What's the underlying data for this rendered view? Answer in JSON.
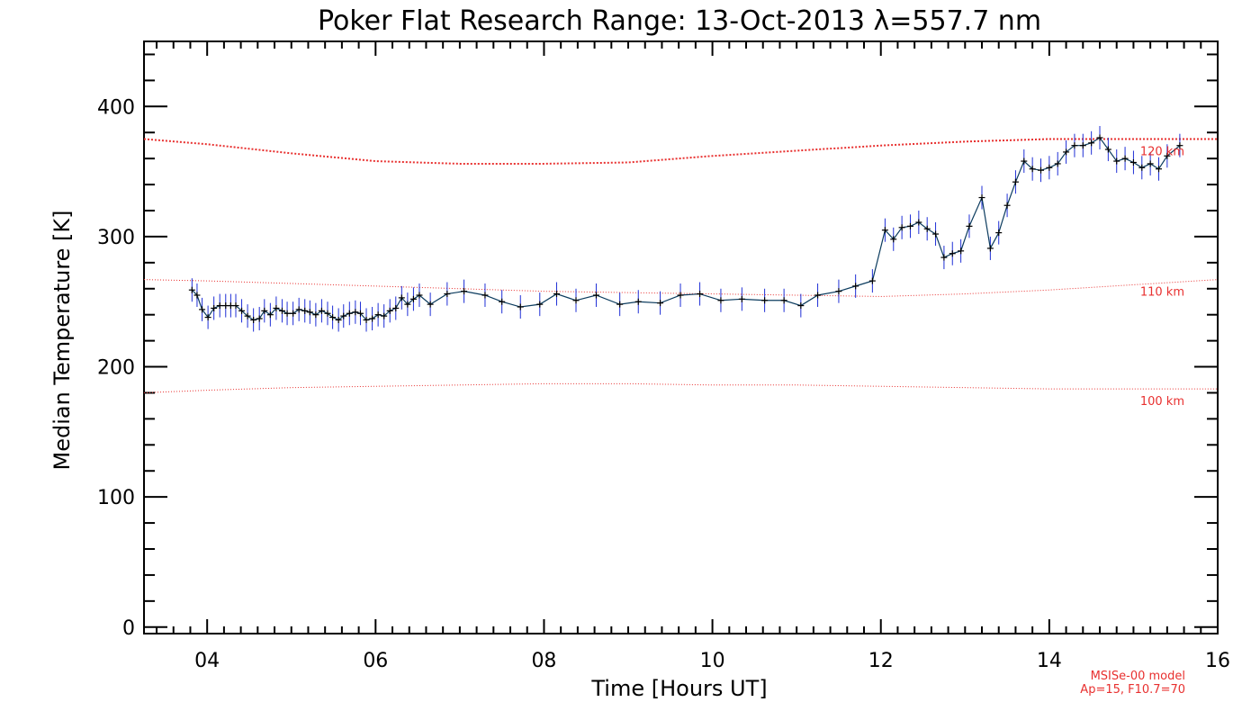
{
  "chart_data": {
    "type": "line",
    "title": "Poker Flat Research Range: 13-Oct-2013 λ=557.7 nm",
    "xlabel": "Time [Hours UT]",
    "ylabel": "Median Temperature [K]",
    "xlim": [
      3.25,
      16.0
    ],
    "ylim": [
      -5,
      450
    ],
    "x_ticks": [
      4,
      6,
      8,
      10,
      12,
      14,
      16
    ],
    "x_tick_labels": [
      "04",
      "06",
      "08",
      "10",
      "12",
      "14",
      "16"
    ],
    "y_ticks": [
      0,
      100,
      200,
      300,
      400
    ],
    "y_tick_labels": [
      "0",
      "100",
      "200",
      "300",
      "400"
    ],
    "series": [
      {
        "name": "Median temperature",
        "style": "solid line with plus markers and vertical error bars",
        "line_color": "#0b3b5e",
        "marker_color": "#000000",
        "error_color": "#1f2fd6",
        "error": 9,
        "x": [
          3.82,
          3.88,
          3.94,
          4.01,
          4.08,
          4.15,
          4.22,
          4.28,
          4.34,
          4.41,
          4.48,
          4.55,
          4.62,
          4.68,
          4.75,
          4.82,
          4.89,
          4.95,
          5.02,
          5.09,
          5.16,
          5.22,
          5.29,
          5.36,
          5.43,
          5.49,
          5.56,
          5.62,
          5.69,
          5.76,
          5.82,
          5.89,
          5.96,
          6.03,
          6.1,
          6.17,
          6.24,
          6.31,
          6.38,
          6.45,
          6.52,
          6.65,
          6.85,
          7.05,
          7.3,
          7.5,
          7.72,
          7.95,
          8.15,
          8.38,
          8.62,
          8.9,
          9.12,
          9.38,
          9.62,
          9.85,
          10.1,
          10.35,
          10.62,
          10.85,
          11.05,
          11.25,
          11.5,
          11.7,
          11.9,
          12.05,
          12.15,
          12.25,
          12.35,
          12.45,
          12.55,
          12.65,
          12.75,
          12.85,
          12.95,
          13.05,
          13.2,
          13.3,
          13.4,
          13.5,
          13.6,
          13.7,
          13.8,
          13.9,
          14.0,
          14.1,
          14.2,
          14.3,
          14.4,
          14.5,
          14.6,
          14.7,
          14.8,
          14.9,
          15.0,
          15.1,
          15.2,
          15.3,
          15.4,
          15.55
        ],
        "values": [
          259,
          255,
          244,
          238,
          245,
          247,
          247,
          247,
          247,
          243,
          239,
          236,
          237,
          243,
          240,
          245,
          243,
          241,
          241,
          244,
          243,
          242,
          240,
          243,
          241,
          238,
          236,
          239,
          241,
          242,
          241,
          236,
          237,
          240,
          239,
          243,
          245,
          253,
          248,
          252,
          255,
          248,
          256,
          258,
          255,
          250,
          246,
          248,
          256,
          251,
          255,
          248,
          250,
          249,
          255,
          256,
          251,
          252,
          251,
          251,
          247,
          255,
          258,
          262,
          266,
          305,
          298,
          307,
          308,
          311,
          306,
          302,
          284,
          287,
          289,
          308,
          330,
          291,
          303,
          324,
          342,
          358,
          352,
          351,
          353,
          356,
          365,
          370,
          370,
          372,
          376,
          367,
          358,
          360,
          357,
          353,
          356,
          352,
          362,
          370
        ]
      },
      {
        "name": "MSISe-00 120 km",
        "style": "dotted",
        "color": "#e8302f",
        "label": "120 km",
        "x": [
          3.25,
          4.0,
          5.0,
          6.0,
          7.0,
          8.0,
          9.0,
          10.0,
          11.0,
          12.0,
          13.0,
          14.0,
          15.0,
          16.0
        ],
        "values": [
          375,
          371,
          364,
          358,
          356,
          356,
          357,
          362,
          366,
          370,
          373,
          375,
          375,
          375
        ]
      },
      {
        "name": "MSISe-00 110 km",
        "style": "dotted",
        "color": "#e8302f",
        "label": "110 km",
        "x": [
          3.25,
          4.0,
          5.0,
          6.0,
          7.0,
          8.0,
          9.0,
          10.0,
          11.0,
          12.0,
          13.0,
          14.0,
          15.0,
          16.0
        ],
        "values": [
          267,
          266,
          264,
          262,
          260,
          258,
          257,
          256,
          255,
          254,
          256,
          259,
          263,
          267
        ]
      },
      {
        "name": "MSISe-00 100 km",
        "style": "dotted",
        "color": "#e8302f",
        "label": "100 km",
        "x": [
          3.25,
          4.0,
          5.0,
          6.0,
          7.0,
          8.0,
          9.0,
          10.0,
          11.0,
          12.0,
          13.0,
          14.0,
          15.0,
          16.0
        ],
        "values": [
          180,
          182,
          184,
          185,
          186,
          187,
          187,
          186,
          186,
          185,
          184,
          183,
          183,
          183
        ]
      }
    ],
    "model_note": [
      "MSISe-00 model",
      "Ap=15, F10.7=70"
    ]
  }
}
